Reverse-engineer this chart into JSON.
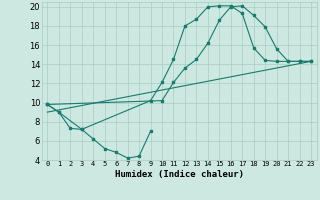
{
  "xlabel": "Humidex (Indice chaleur)",
  "bg_color": "#cce8e0",
  "grid_color": "#a8ccc4",
  "line_color": "#1a7a6e",
  "xlim": [
    -0.5,
    23.5
  ],
  "ylim": [
    4,
    20.5
  ],
  "xticks": [
    0,
    1,
    2,
    3,
    4,
    5,
    6,
    7,
    8,
    9,
    10,
    11,
    12,
    13,
    14,
    15,
    16,
    17,
    18,
    19,
    20,
    21,
    22,
    23
  ],
  "yticks": [
    4,
    6,
    8,
    10,
    12,
    14,
    16,
    18,
    20
  ],
  "line1_x": [
    0,
    1,
    2,
    3,
    4,
    5,
    6,
    7,
    8,
    9
  ],
  "line1_y": [
    9.8,
    9.0,
    7.3,
    7.2,
    6.2,
    5.2,
    4.8,
    4.2,
    4.4,
    7.0
  ],
  "line2_x": [
    0,
    1,
    3,
    9,
    10,
    11,
    12,
    13,
    14,
    15,
    16,
    17,
    18,
    19,
    20,
    21,
    22,
    23
  ],
  "line2_y": [
    9.8,
    9.0,
    7.2,
    10.2,
    12.1,
    14.5,
    18.0,
    18.7,
    20.0,
    20.1,
    20.1,
    19.3,
    15.7,
    14.4,
    14.3,
    14.3,
    14.3,
    14.3
  ],
  "line3_x": [
    0,
    10,
    11,
    12,
    13,
    14,
    15,
    16,
    17,
    18,
    19,
    20,
    21,
    22,
    23
  ],
  "line3_y": [
    9.8,
    10.2,
    12.1,
    13.6,
    14.5,
    16.2,
    18.6,
    20.0,
    20.1,
    19.1,
    17.9,
    15.6,
    14.3,
    14.3,
    14.3
  ],
  "line4_x": [
    0,
    23
  ],
  "line4_y": [
    9.0,
    14.3
  ]
}
